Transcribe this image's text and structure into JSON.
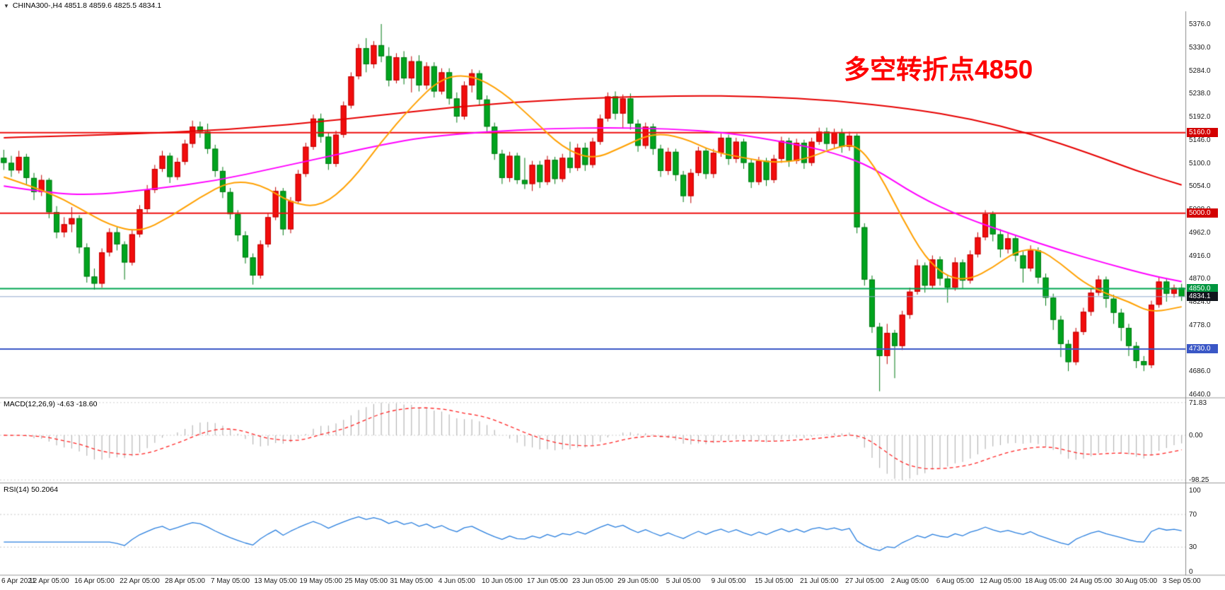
{
  "header": {
    "dropdown_icon": "▼",
    "title": "CHINA300-,H4 4851.8 4859.6 4825.5 4834.1"
  },
  "annotation": {
    "text": "多空转折点4850",
    "color": "#fe0000"
  },
  "chart_data": {
    "type": "candlestick",
    "symbol": "CHINA300-",
    "timeframe": "H4",
    "last_bar": {
      "open": 4851.8,
      "high": 4859.6,
      "low": 4825.5,
      "close": 4834.1
    },
    "y_axis": {
      "max": 5376.0,
      "min": 4640.0,
      "step": 46.0,
      "labels": [
        "5376.0",
        "5330.0",
        "5284.0",
        "5238.0",
        "5192.0",
        "5146.0",
        "5100.0",
        "5054.0",
        "5008.0",
        "4962.0",
        "4916.0",
        "4870.0",
        "4824.0",
        "4778.0",
        "4732.0",
        "4686.0",
        "4640.0"
      ]
    },
    "x_labels": [
      "6 Apr 2021",
      "12 Apr 05:00",
      "16 Apr 05:00",
      "22 Apr 05:00",
      "28 Apr 05:00",
      "7 May 05:00",
      "13 May 05:00",
      "19 May 05:00",
      "25 May 05:00",
      "31 May 05:00",
      "4 Jun 05:00",
      "10 Jun 05:00",
      "17 Jun 05:00",
      "23 Jun 05:00",
      "29 Jun 05:00",
      "5 Jul 05:00",
      "9 Jul 05:00",
      "15 Jul 05:00",
      "21 Jul 05:00",
      "27 Jul 05:00",
      "2 Aug 05:00",
      "6 Aug 05:00",
      "12 Aug 05:00",
      "18 Aug 05:00",
      "24 Aug 05:00",
      "30 Aug 05:00",
      "3 Sep 05:00"
    ],
    "colors": {
      "up_fill": "#f20c0c",
      "up_stroke": "#bf0000",
      "down_fill": "#00a41e",
      "down_stroke": "#007a14",
      "separator": "#9a9a9a",
      "axis_text": "#1a1a1a"
    },
    "candles_ohlc": [
      [
        5110,
        5126,
        5086,
        5100
      ],
      [
        5100,
        5114,
        5072,
        5085
      ],
      [
        5085,
        5124,
        5079,
        5112
      ],
      [
        5112,
        5118,
        5056,
        5070
      ],
      [
        5070,
        5080,
        5026,
        5042
      ],
      [
        5042,
        5076,
        5034,
        5066
      ],
      [
        5066,
        5070,
        4990,
        5002
      ],
      [
        5002,
        5014,
        4950,
        4962
      ],
      [
        4962,
        4992,
        4952,
        4978
      ],
      [
        4978,
        5012,
        4962,
        4990
      ],
      [
        4990,
        4996,
        4920,
        4932
      ],
      [
        4932,
        4940,
        4862,
        4874
      ],
      [
        4874,
        4890,
        4848,
        4860
      ],
      [
        4860,
        4930,
        4852,
        4922
      ],
      [
        4922,
        4970,
        4914,
        4962
      ],
      [
        4962,
        4972,
        4926,
        4938
      ],
      [
        4938,
        4944,
        4868,
        4902
      ],
      [
        4902,
        4966,
        4896,
        4958
      ],
      [
        4958,
        5016,
        4952,
        5008
      ],
      [
        5008,
        5056,
        5000,
        5046
      ],
      [
        5046,
        5096,
        5040,
        5088
      ],
      [
        5088,
        5124,
        5082,
        5114
      ],
      [
        5114,
        5120,
        5060,
        5072
      ],
      [
        5072,
        5110,
        5066,
        5102
      ],
      [
        5102,
        5146,
        5096,
        5138
      ],
      [
        5138,
        5184,
        5130,
        5172
      ],
      [
        5172,
        5182,
        5150,
        5162
      ],
      [
        5162,
        5178,
        5118,
        5128
      ],
      [
        5128,
        5136,
        5072,
        5084
      ],
      [
        5084,
        5092,
        5030,
        5042
      ],
      [
        5042,
        5050,
        4988,
        4998
      ],
      [
        4998,
        5006,
        4944,
        4956
      ],
      [
        4956,
        4964,
        4900,
        4912
      ],
      [
        4912,
        4920,
        4858,
        4876
      ],
      [
        4876,
        4946,
        4870,
        4938
      ],
      [
        4938,
        5000,
        4932,
        4992
      ],
      [
        4992,
        5052,
        4986,
        5044
      ],
      [
        5044,
        5050,
        4956,
        4968
      ],
      [
        4968,
        5032,
        4960,
        5024
      ],
      [
        5024,
        5086,
        5018,
        5078
      ],
      [
        5078,
        5140,
        5072,
        5132
      ],
      [
        5132,
        5196,
        5126,
        5188
      ],
      [
        5188,
        5198,
        5140,
        5152
      ],
      [
        5152,
        5160,
        5086,
        5098
      ],
      [
        5098,
        5164,
        5092,
        5156
      ],
      [
        5156,
        5222,
        5150,
        5214
      ],
      [
        5214,
        5280,
        5208,
        5272
      ],
      [
        5272,
        5336,
        5266,
        5328
      ],
      [
        5328,
        5348,
        5280,
        5296
      ],
      [
        5296,
        5342,
        5288,
        5334
      ],
      [
        5334,
        5376,
        5300,
        5312
      ],
      [
        5312,
        5330,
        5252,
        5264
      ],
      [
        5264,
        5318,
        5258,
        5310
      ],
      [
        5310,
        5322,
        5256,
        5268
      ],
      [
        5268,
        5312,
        5240,
        5302
      ],
      [
        5302,
        5314,
        5242,
        5254
      ],
      [
        5254,
        5300,
        5246,
        5292
      ],
      [
        5292,
        5300,
        5230,
        5242
      ],
      [
        5242,
        5288,
        5236,
        5280
      ],
      [
        5280,
        5288,
        5216,
        5228
      ],
      [
        5228,
        5240,
        5180,
        5192
      ],
      [
        5192,
        5262,
        5186,
        5254
      ],
      [
        5254,
        5286,
        5240,
        5278
      ],
      [
        5278,
        5284,
        5214,
        5226
      ],
      [
        5226,
        5234,
        5160,
        5172
      ],
      [
        5172,
        5180,
        5106,
        5118
      ],
      [
        5118,
        5126,
        5058,
        5070
      ],
      [
        5070,
        5122,
        5062,
        5114
      ],
      [
        5114,
        5120,
        5058,
        5066
      ],
      [
        5066,
        5110,
        5048,
        5058
      ],
      [
        5058,
        5104,
        5044,
        5096
      ],
      [
        5096,
        5104,
        5050,
        5062
      ],
      [
        5062,
        5114,
        5056,
        5106
      ],
      [
        5106,
        5112,
        5058,
        5068
      ],
      [
        5068,
        5118,
        5062,
        5110
      ],
      [
        5110,
        5142,
        5080,
        5090
      ],
      [
        5090,
        5138,
        5084,
        5130
      ],
      [
        5130,
        5140,
        5084,
        5096
      ],
      [
        5096,
        5150,
        5090,
        5142
      ],
      [
        5142,
        5196,
        5136,
        5188
      ],
      [
        5188,
        5240,
        5182,
        5232
      ],
      [
        5232,
        5242,
        5186,
        5198
      ],
      [
        5198,
        5236,
        5168,
        5228
      ],
      [
        5228,
        5238,
        5166,
        5178
      ],
      [
        5178,
        5186,
        5122,
        5134
      ],
      [
        5134,
        5180,
        5128,
        5172
      ],
      [
        5172,
        5178,
        5116,
        5128
      ],
      [
        5128,
        5136,
        5072,
        5084
      ],
      [
        5084,
        5130,
        5076,
        5122
      ],
      [
        5122,
        5128,
        5064,
        5076
      ],
      [
        5076,
        5084,
        5022,
        5034
      ],
      [
        5034,
        5088,
        5020,
        5080
      ],
      [
        5080,
        5132,
        5074,
        5124
      ],
      [
        5124,
        5130,
        5068,
        5078
      ],
      [
        5078,
        5128,
        5070,
        5120
      ],
      [
        5120,
        5158,
        5112,
        5150
      ],
      [
        5150,
        5156,
        5096,
        5108
      ],
      [
        5108,
        5150,
        5100,
        5142
      ],
      [
        5142,
        5148,
        5088,
        5100
      ],
      [
        5100,
        5108,
        5050,
        5062
      ],
      [
        5062,
        5112,
        5056,
        5104
      ],
      [
        5104,
        5110,
        5054,
        5066
      ],
      [
        5066,
        5116,
        5060,
        5108
      ],
      [
        5108,
        5152,
        5100,
        5144
      ],
      [
        5144,
        5150,
        5092,
        5104
      ],
      [
        5104,
        5148,
        5098,
        5140
      ],
      [
        5140,
        5146,
        5088,
        5100
      ],
      [
        5100,
        5150,
        5094,
        5142
      ],
      [
        5142,
        5170,
        5136,
        5162
      ],
      [
        5162,
        5170,
        5126,
        5138
      ],
      [
        5138,
        5168,
        5130,
        5160
      ],
      [
        5160,
        5168,
        5120,
        5132
      ],
      [
        5132,
        5162,
        5124,
        5154
      ],
      [
        5154,
        5158,
        4960,
        4972
      ],
      [
        4972,
        4980,
        4856,
        4868
      ],
      [
        4868,
        4876,
        4762,
        4774
      ],
      [
        4774,
        4782,
        4646,
        4716
      ],
      [
        4716,
        4780,
        4700,
        4762
      ],
      [
        4762,
        4768,
        4672,
        4736
      ],
      [
        4736,
        4806,
        4728,
        4798
      ],
      [
        4798,
        4852,
        4790,
        4844
      ],
      [
        4844,
        4908,
        4838,
        4896
      ],
      [
        4896,
        4902,
        4842,
        4856
      ],
      [
        4856,
        4916,
        4850,
        4908
      ],
      [
        4908,
        4914,
        4856,
        4870
      ],
      [
        4870,
        4878,
        4822,
        4852
      ],
      [
        4852,
        4912,
        4846,
        4902
      ],
      [
        4902,
        4908,
        4850,
        4866
      ],
      [
        4866,
        4926,
        4860,
        4918
      ],
      [
        4918,
        4962,
        4912,
        4952
      ],
      [
        4952,
        5006,
        4946,
        4998
      ],
      [
        4998,
        5004,
        4944,
        4958
      ],
      [
        4958,
        4968,
        4912,
        4928
      ],
      [
        4928,
        4960,
        4920,
        4950
      ],
      [
        4950,
        4956,
        4904,
        4916
      ],
      [
        4916,
        4924,
        4862,
        4890
      ],
      [
        4890,
        4936,
        4884,
        4926
      ],
      [
        4926,
        4932,
        4860,
        4872
      ],
      [
        4872,
        4880,
        4816,
        4832
      ],
      [
        4832,
        4840,
        4768,
        4788
      ],
      [
        4788,
        4796,
        4714,
        4740
      ],
      [
        4740,
        4748,
        4686,
        4704
      ],
      [
        4704,
        4772,
        4698,
        4764
      ],
      [
        4764,
        4812,
        4758,
        4804
      ],
      [
        4804,
        4850,
        4796,
        4842
      ],
      [
        4842,
        4876,
        4836,
        4868
      ],
      [
        4868,
        4874,
        4812,
        4830
      ],
      [
        4830,
        4838,
        4780,
        4802
      ],
      [
        4802,
        4810,
        4746,
        4772
      ],
      [
        4772,
        4780,
        4716,
        4736
      ],
      [
        4736,
        4744,
        4692,
        4706
      ],
      [
        4706,
        4716,
        4686,
        4698
      ],
      [
        4698,
        4826,
        4692,
        4818
      ],
      [
        4818,
        4872,
        4812,
        4864
      ],
      [
        4864,
        4870,
        4824,
        4840
      ],
      [
        4840,
        4858,
        4832,
        4851.8
      ],
      [
        4851.8,
        4859.6,
        4825.5,
        4834.1
      ]
    ],
    "moving_averages": [
      {
        "name": "slow-ma",
        "color": "#e60000",
        "width": 2,
        "points": [
          [
            0,
            5150
          ],
          [
            15,
            5156
          ],
          [
            30,
            5166
          ],
          [
            45,
            5186
          ],
          [
            60,
            5212
          ],
          [
            75,
            5228
          ],
          [
            90,
            5234
          ],
          [
            100,
            5232
          ],
          [
            110,
            5224
          ],
          [
            120,
            5208
          ],
          [
            128,
            5188
          ],
          [
            136,
            5158
          ],
          [
            144,
            5118
          ],
          [
            150,
            5084
          ],
          [
            156,
            5056
          ]
        ]
      },
      {
        "name": "medium-ma",
        "color": "#ff00ff",
        "width": 2,
        "points": [
          [
            0,
            5054
          ],
          [
            6,
            5040
          ],
          [
            12,
            5036
          ],
          [
            20,
            5048
          ],
          [
            28,
            5064
          ],
          [
            36,
            5090
          ],
          [
            44,
            5116
          ],
          [
            50,
            5136
          ],
          [
            56,
            5152
          ],
          [
            64,
            5162
          ],
          [
            72,
            5168
          ],
          [
            80,
            5170
          ],
          [
            88,
            5168
          ],
          [
            96,
            5160
          ],
          [
            104,
            5140
          ],
          [
            110,
            5120
          ],
          [
            115,
            5092
          ],
          [
            121,
            5034
          ],
          [
            127,
            4992
          ],
          [
            134,
            4956
          ],
          [
            140,
            4926
          ],
          [
            146,
            4900
          ],
          [
            152,
            4876
          ],
          [
            156,
            4864
          ]
        ]
      },
      {
        "name": "fast-ma",
        "color": "#ffa000",
        "width": 2,
        "points": [
          [
            0,
            5072
          ],
          [
            6,
            5042
          ],
          [
            10,
            5010
          ],
          [
            14,
            4976
          ],
          [
            18,
            4962
          ],
          [
            22,
            4992
          ],
          [
            26,
            5032
          ],
          [
            30,
            5064
          ],
          [
            34,
            5058
          ],
          [
            38,
            5020
          ],
          [
            42,
            5012
          ],
          [
            46,
            5062
          ],
          [
            50,
            5142
          ],
          [
            54,
            5212
          ],
          [
            58,
            5270
          ],
          [
            62,
            5275
          ],
          [
            66,
            5242
          ],
          [
            70,
            5188
          ],
          [
            74,
            5130
          ],
          [
            78,
            5106
          ],
          [
            82,
            5132
          ],
          [
            86,
            5160
          ],
          [
            90,
            5150
          ],
          [
            94,
            5122
          ],
          [
            98,
            5110
          ],
          [
            102,
            5100
          ],
          [
            106,
            5106
          ],
          [
            110,
            5130
          ],
          [
            113,
            5138
          ],
          [
            116,
            5078
          ],
          [
            119,
            4990
          ],
          [
            122,
            4912
          ],
          [
            125,
            4872
          ],
          [
            128,
            4868
          ],
          [
            131,
            4892
          ],
          [
            134,
            4924
          ],
          [
            137,
            4930
          ],
          [
            140,
            4900
          ],
          [
            143,
            4862
          ],
          [
            146,
            4840
          ],
          [
            149,
            4824
          ],
          [
            152,
            4802
          ],
          [
            156,
            4814
          ]
        ]
      }
    ],
    "levels": [
      {
        "price": 5160.0,
        "label": "5160.0",
        "line_color": "#ee1111",
        "line_width": 2,
        "tag_bg": "#d30000"
      },
      {
        "price": 5000.0,
        "label": "5000.0",
        "line_color": "#ee1111",
        "line_width": 2,
        "tag_bg": "#d30000"
      },
      {
        "price": 4850.0,
        "label": "4850.0",
        "line_color": "#00a650",
        "line_width": 2,
        "tag_bg": "#00953f"
      },
      {
        "price": 4834.1,
        "label": "4834.1",
        "line_color": "#8fa8cc",
        "line_width": 1,
        "tag_bg": "#11151d"
      },
      {
        "price": 4730.0,
        "label": "4730.0",
        "line_color": "#3a57c6",
        "line_width": 2,
        "tag_bg": "#3a57c6"
      }
    ],
    "macd": {
      "title": "MACD(12,26,9) -4.63 -18.60",
      "fast": 12,
      "slow": 26,
      "signal": 9,
      "value": -4.63,
      "signal_value": -18.6,
      "axis_values": [
        71.83,
        0,
        -98.25
      ],
      "axis_labels": [
        "71.83",
        "0.00",
        "-98.25"
      ],
      "hist_color": "#b6b6b6",
      "signal_color": "#ff2222"
    },
    "rsi": {
      "title": "RSI(14) 50.2064",
      "period": 14,
      "value": 50.2064,
      "axis_values": [
        100,
        70,
        30,
        0
      ],
      "axis_labels": [
        "100",
        "70",
        "30",
        "0"
      ],
      "levels": [
        70,
        30
      ],
      "line_color": "#2a7fde"
    }
  }
}
